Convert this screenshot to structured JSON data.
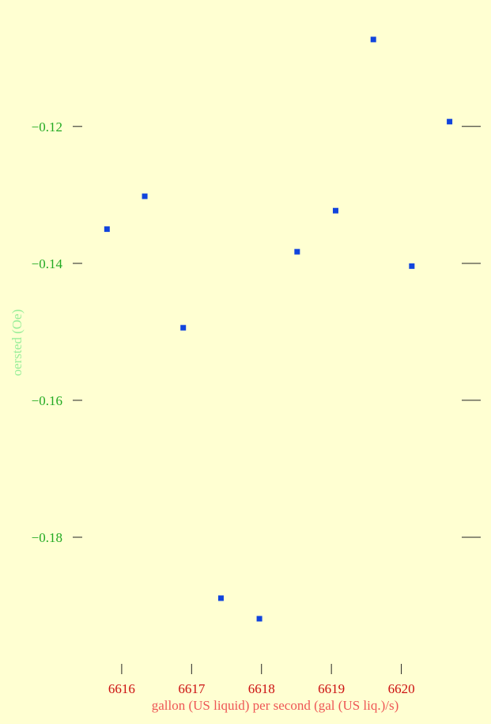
{
  "chart_data": {
    "type": "scatter",
    "title": "",
    "xlabel": "gallon (US liquid) per second (gal (US liq.)/s)",
    "ylabel": "oersted (Oe)",
    "x_ticks": [
      6616,
      6617,
      6618,
      6619,
      6620
    ],
    "x_tick_labels": [
      "6616",
      "6617",
      "6618",
      "6619",
      "6620"
    ],
    "y_ticks": [
      -0.12,
      -0.14,
      -0.16,
      -0.18
    ],
    "y_tick_labels": [
      "−0.12",
      "−0.14",
      "−0.16",
      "−0.18"
    ],
    "xlim": [
      6615.3,
      6621.0
    ],
    "ylim": [
      -0.1978,
      -0.105
    ],
    "grid": false,
    "legend": "none",
    "marker_color": "#1144dd",
    "points": [
      {
        "x": 6615.79,
        "y": -0.135
      },
      {
        "x": 6616.33,
        "y": -0.1302
      },
      {
        "x": 6616.88,
        "y": -0.1494
      },
      {
        "x": 6617.42,
        "y": -0.1889
      },
      {
        "x": 6617.97,
        "y": -0.1919
      },
      {
        "x": 6618.51,
        "y": -0.1383
      },
      {
        "x": 6619.06,
        "y": -0.1323
      },
      {
        "x": 6619.6,
        "y": -0.1073
      },
      {
        "x": 6620.15,
        "y": -0.1404
      },
      {
        "x": 6620.69,
        "y": -0.1193
      }
    ]
  }
}
